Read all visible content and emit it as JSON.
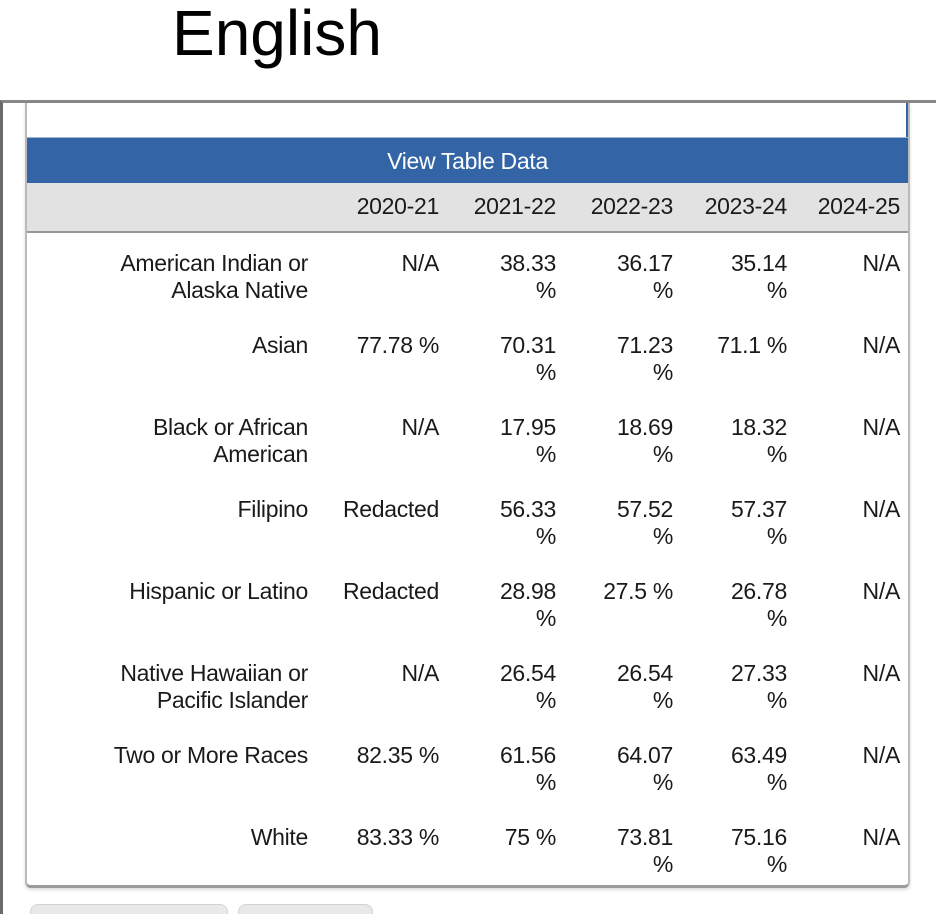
{
  "page": {
    "heading": "English"
  },
  "panel": {
    "title_bar": {
      "label": "View Table Data",
      "background": "#3365a6",
      "text_color": "#ffffff"
    }
  },
  "table": {
    "column_headers": [
      "2020-21",
      "2021-22",
      "2022-23",
      "2023-24",
      "2024-25"
    ],
    "rows": [
      {
        "label": "American Indian or\nAlaska Native",
        "values": [
          "N/A",
          "38.33\n%",
          "36.17\n%",
          "35.14\n%",
          "N/A"
        ]
      },
      {
        "label": "Asian",
        "values": [
          "77.78 %",
          "70.31\n%",
          "71.23\n%",
          "71.1 %",
          "N/A"
        ]
      },
      {
        "label": "Black or African\nAmerican",
        "values": [
          "N/A",
          "17.95\n%",
          "18.69\n%",
          "18.32\n%",
          "N/A"
        ]
      },
      {
        "label": "Filipino",
        "values": [
          "Redacted",
          "56.33\n%",
          "57.52\n%",
          "57.37\n%",
          "N/A"
        ]
      },
      {
        "label": "Hispanic or Latino",
        "values": [
          "Redacted",
          "28.98\n%",
          "27.5 %",
          "26.78\n%",
          "N/A"
        ]
      },
      {
        "label": "Native Hawaiian or\nPacific Islander",
        "values": [
          "N/A",
          "26.54\n%",
          "26.54\n%",
          "27.33\n%",
          "N/A"
        ]
      },
      {
        "label": "Two or More Races",
        "values": [
          "82.35 %",
          "61.56\n%",
          "64.07\n%",
          "63.49\n%",
          "N/A"
        ]
      },
      {
        "label": "White",
        "values": [
          "83.33 %",
          "75 %",
          "73.81\n%",
          "75.16\n%",
          "N/A"
        ]
      }
    ]
  }
}
